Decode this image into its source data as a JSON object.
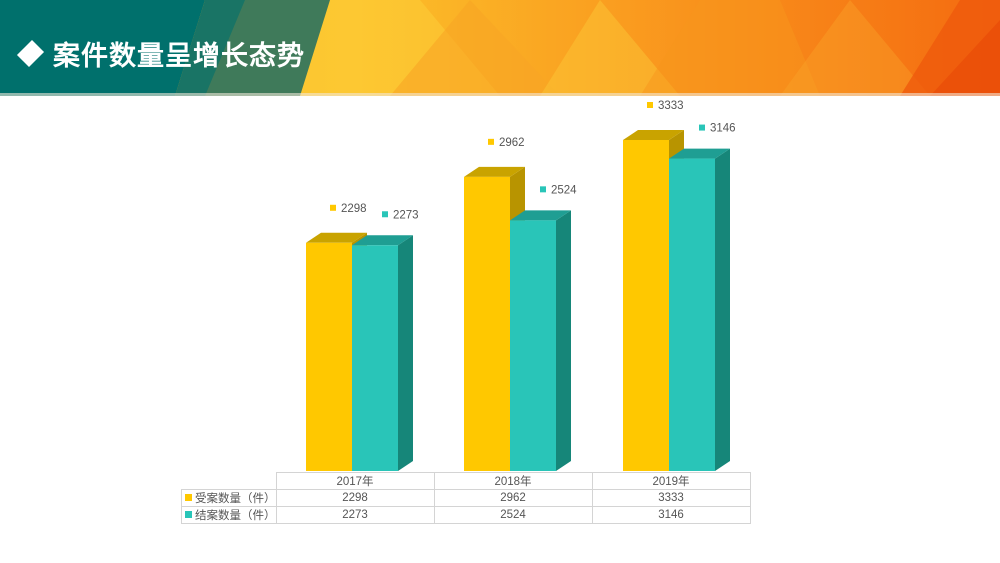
{
  "header": {
    "title": "案件数量呈增长态势",
    "bullet_icon": "diamond-icon"
  },
  "colors": {
    "accepted": "#FFC800",
    "accepted_top": "#C9A300",
    "accepted_side": "#B89400",
    "closed": "#29C5B8",
    "closed_top": "#1F9E93",
    "closed_side": "#168679",
    "header_teal": "#00706C"
  },
  "chart_data": {
    "type": "bar",
    "style": "3d-clustered-column",
    "categories": [
      "2017年",
      "2018年",
      "2019年"
    ],
    "series": [
      {
        "name": "受案数量（件）",
        "values": [
          2298,
          2962,
          3333
        ]
      },
      {
        "name": "结案数量（件）",
        "values": [
          2273,
          2524,
          3146
        ]
      }
    ],
    "ylim": [
      0,
      3333
    ],
    "grid": false,
    "data_labels": true,
    "legend": "data-table"
  },
  "table": {
    "rows": [
      {
        "label": "受案数量（件）",
        "values": [
          "2298",
          "2962",
          "3333"
        ]
      },
      {
        "label": "结案数量（件）",
        "values": [
          "2273",
          "2524",
          "3146"
        ]
      }
    ]
  }
}
